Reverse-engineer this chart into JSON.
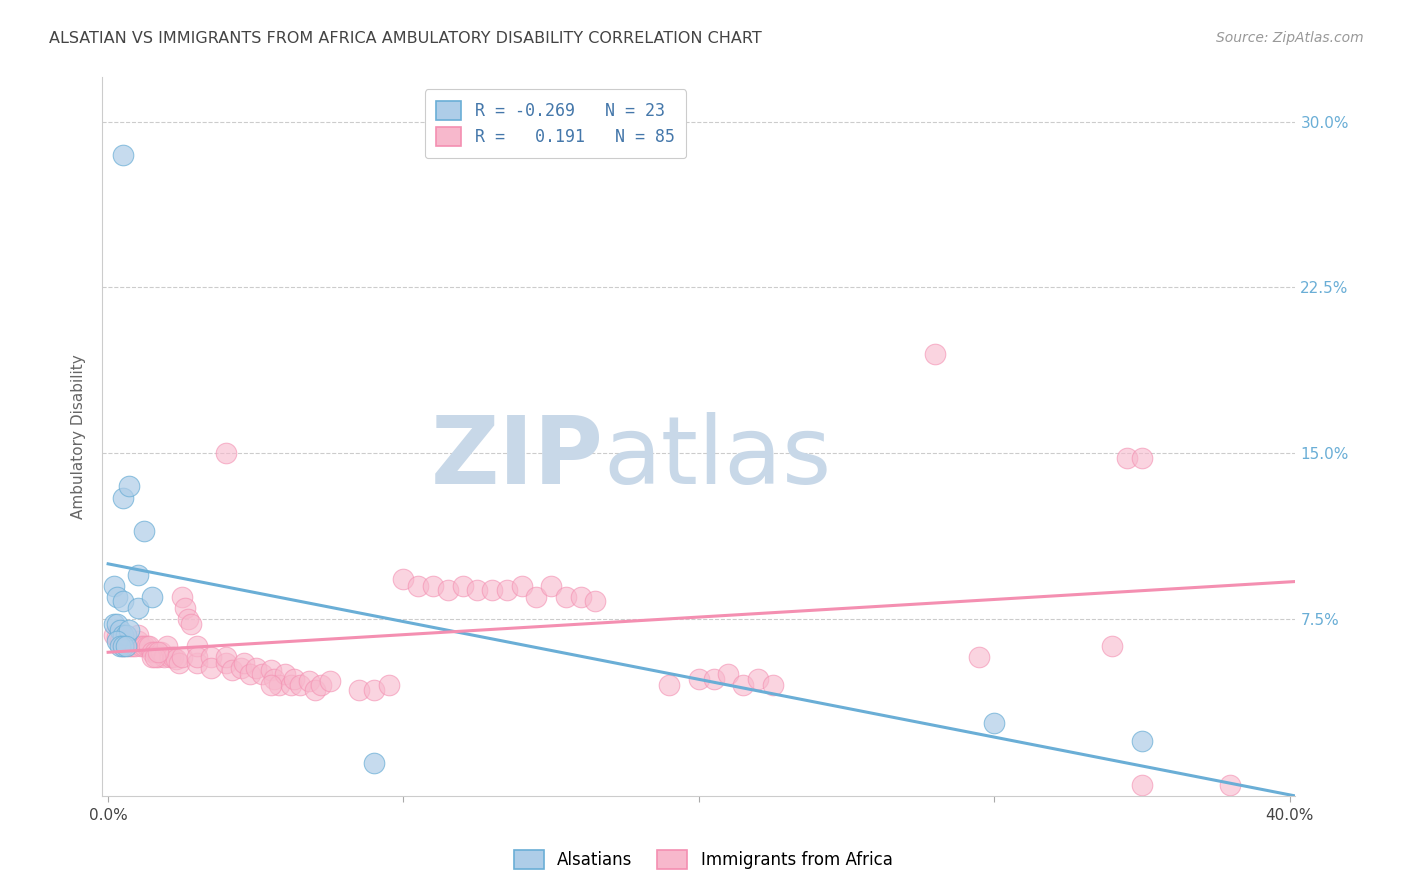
{
  "title": "ALSATIAN VS IMMIGRANTS FROM AFRICA AMBULATORY DISABILITY CORRELATION CHART",
  "source": "Source: ZipAtlas.com",
  "ylabel": "Ambulatory Disability",
  "xlim": [
    -0.002,
    0.402
  ],
  "ylim": [
    -0.005,
    0.32
  ],
  "xticks": [
    0.0,
    0.1,
    0.2,
    0.3,
    0.4
  ],
  "xtick_labels": [
    "0.0%",
    "",
    "",
    "",
    "40.0%"
  ],
  "yticks": [
    0.075,
    0.15,
    0.225,
    0.3
  ],
  "ytick_labels": [
    "7.5%",
    "15.0%",
    "22.5%",
    "30.0%"
  ],
  "legend_label1": "Alsatians",
  "legend_label2": "Immigrants from Africa",
  "watermark_zip": "ZIP",
  "watermark_atlas": "atlas",
  "blue_color": "#6aaed6",
  "pink_color": "#f48fb1",
  "blue_fill": "#aecde8",
  "pink_fill": "#f7b8cc",
  "alsatian_points": [
    [
      0.005,
      0.285
    ],
    [
      0.005,
      0.13
    ],
    [
      0.007,
      0.135
    ],
    [
      0.012,
      0.115
    ],
    [
      0.01,
      0.095
    ],
    [
      0.002,
      0.09
    ],
    [
      0.003,
      0.085
    ],
    [
      0.005,
      0.083
    ],
    [
      0.01,
      0.08
    ],
    [
      0.015,
      0.085
    ],
    [
      0.002,
      0.073
    ],
    [
      0.003,
      0.073
    ],
    [
      0.004,
      0.07
    ],
    [
      0.005,
      0.068
    ],
    [
      0.006,
      0.068
    ],
    [
      0.007,
      0.07
    ],
    [
      0.003,
      0.065
    ],
    [
      0.004,
      0.063
    ],
    [
      0.005,
      0.063
    ],
    [
      0.006,
      0.063
    ],
    [
      0.3,
      0.028
    ],
    [
      0.35,
      0.02
    ],
    [
      0.09,
      0.01
    ]
  ],
  "africa_points": [
    [
      0.002,
      0.068
    ],
    [
      0.003,
      0.067
    ],
    [
      0.004,
      0.065
    ],
    [
      0.005,
      0.063
    ],
    [
      0.005,
      0.067
    ],
    [
      0.006,
      0.065
    ],
    [
      0.007,
      0.063
    ],
    [
      0.008,
      0.063
    ],
    [
      0.009,
      0.063
    ],
    [
      0.01,
      0.065
    ],
    [
      0.01,
      0.068
    ],
    [
      0.011,
      0.063
    ],
    [
      0.012,
      0.063
    ],
    [
      0.013,
      0.063
    ],
    [
      0.014,
      0.063
    ],
    [
      0.015,
      0.06
    ],
    [
      0.016,
      0.06
    ],
    [
      0.017,
      0.058
    ],
    [
      0.018,
      0.06
    ],
    [
      0.019,
      0.058
    ],
    [
      0.02,
      0.063
    ],
    [
      0.021,
      0.058
    ],
    [
      0.022,
      0.058
    ],
    [
      0.023,
      0.057
    ],
    [
      0.024,
      0.055
    ],
    [
      0.025,
      0.085
    ],
    [
      0.026,
      0.08
    ],
    [
      0.027,
      0.075
    ],
    [
      0.028,
      0.073
    ],
    [
      0.025,
      0.058
    ],
    [
      0.03,
      0.055
    ],
    [
      0.03,
      0.063
    ],
    [
      0.03,
      0.058
    ],
    [
      0.035,
      0.058
    ],
    [
      0.035,
      0.053
    ],
    [
      0.04,
      0.055
    ],
    [
      0.04,
      0.058
    ],
    [
      0.042,
      0.052
    ],
    [
      0.045,
      0.053
    ],
    [
      0.046,
      0.055
    ],
    [
      0.048,
      0.05
    ],
    [
      0.05,
      0.053
    ],
    [
      0.052,
      0.05
    ],
    [
      0.055,
      0.052
    ],
    [
      0.056,
      0.048
    ],
    [
      0.058,
      0.045
    ],
    [
      0.06,
      0.05
    ],
    [
      0.062,
      0.045
    ],
    [
      0.063,
      0.048
    ],
    [
      0.065,
      0.045
    ],
    [
      0.068,
      0.047
    ],
    [
      0.07,
      0.043
    ],
    [
      0.072,
      0.045
    ],
    [
      0.075,
      0.047
    ],
    [
      0.1,
      0.093
    ],
    [
      0.105,
      0.09
    ],
    [
      0.11,
      0.09
    ],
    [
      0.115,
      0.088
    ],
    [
      0.12,
      0.09
    ],
    [
      0.125,
      0.088
    ],
    [
      0.13,
      0.088
    ],
    [
      0.135,
      0.088
    ],
    [
      0.14,
      0.09
    ],
    [
      0.145,
      0.085
    ],
    [
      0.15,
      0.09
    ],
    [
      0.155,
      0.085
    ],
    [
      0.16,
      0.085
    ],
    [
      0.165,
      0.083
    ],
    [
      0.2,
      0.048
    ],
    [
      0.205,
      0.048
    ],
    [
      0.21,
      0.05
    ],
    [
      0.215,
      0.045
    ],
    [
      0.22,
      0.048
    ],
    [
      0.225,
      0.045
    ],
    [
      0.055,
      0.045
    ],
    [
      0.19,
      0.045
    ],
    [
      0.295,
      0.058
    ],
    [
      0.34,
      0.063
    ],
    [
      0.04,
      0.15
    ],
    [
      0.28,
      0.195
    ],
    [
      0.345,
      0.148
    ],
    [
      0.35,
      0.148
    ],
    [
      0.015,
      0.058
    ],
    [
      0.016,
      0.058
    ],
    [
      0.017,
      0.06
    ],
    [
      0.085,
      0.043
    ],
    [
      0.09,
      0.043
    ],
    [
      0.095,
      0.045
    ],
    [
      0.35,
      0.0
    ],
    [
      0.38,
      0.0
    ]
  ],
  "blue_line_x": [
    0.0,
    0.402
  ],
  "blue_line_y": [
    0.1,
    -0.005
  ],
  "pink_line_x": [
    0.0,
    0.402
  ],
  "pink_line_y": [
    0.06,
    0.092
  ],
  "background_color": "#ffffff",
  "grid_color": "#cccccc",
  "title_color": "#444444",
  "watermark_color_zip": "#c8d8e8",
  "watermark_color_atlas": "#c8d8e8"
}
